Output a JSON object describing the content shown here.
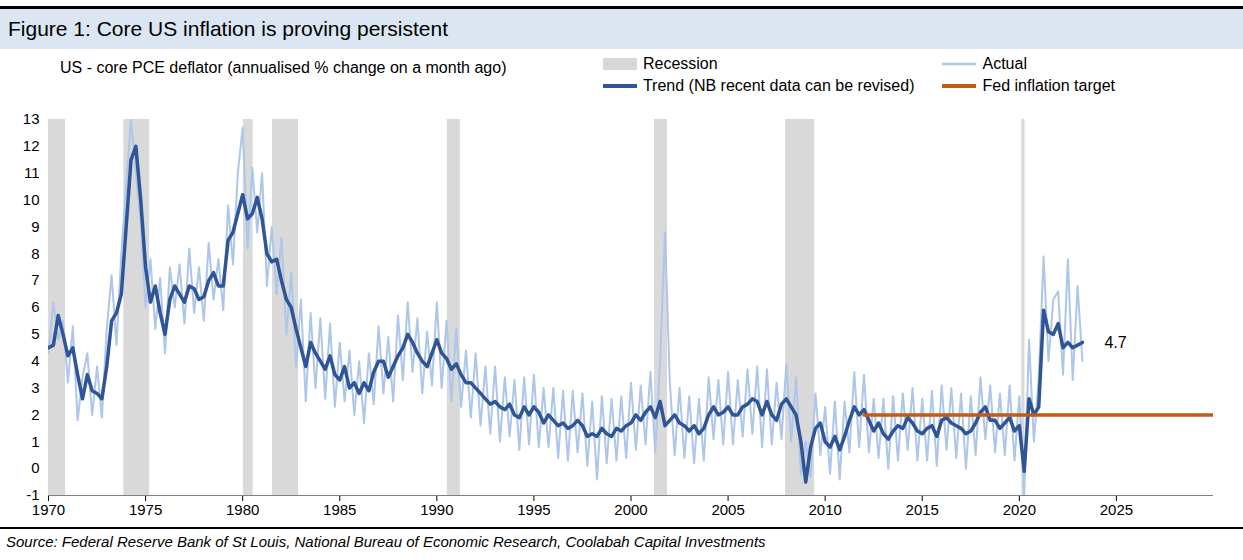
{
  "chart_data": {
    "type": "line",
    "title": "Figure 1: Core US inflation is proving persistent",
    "subtitle": "US - core PCE deflator (annualised % change on a month ago)",
    "source": "Source: Federal Reserve Bank of St Louis, National Bureau of Economic Research, Coolabah Capital Investments",
    "xlim": [
      1970,
      2030
    ],
    "xticks": [
      1970,
      1975,
      1980,
      1985,
      1990,
      1995,
      2000,
      2005,
      2010,
      2015,
      2020,
      2025
    ],
    "ylim": [
      -1,
      13
    ],
    "yticks": [
      -1,
      0,
      1,
      2,
      3,
      4,
      5,
      6,
      7,
      8,
      9,
      10,
      11,
      12,
      13
    ],
    "grid": false,
    "recessions": {
      "name": "Recession",
      "color": "#d9d9d9",
      "periods": [
        [
          1969.92,
          1970.88
        ],
        [
          1973.88,
          1975.21
        ],
        [
          1980.04,
          1980.54
        ],
        [
          1981.54,
          1982.88
        ],
        [
          1990.54,
          1991.21
        ],
        [
          2001.21,
          2001.88
        ],
        [
          2007.96,
          2009.46
        ],
        [
          2020.13,
          2020.29
        ]
      ]
    },
    "x": [
      1970,
      1970.25,
      1970.5,
      1970.75,
      1971,
      1971.25,
      1971.5,
      1971.75,
      1972,
      1972.25,
      1972.5,
      1972.75,
      1973,
      1973.25,
      1973.5,
      1973.75,
      1974,
      1974.25,
      1974.5,
      1974.75,
      1975,
      1975.25,
      1975.5,
      1975.75,
      1976,
      1976.25,
      1976.5,
      1976.75,
      1977,
      1977.25,
      1977.5,
      1977.75,
      1978,
      1978.25,
      1978.5,
      1978.75,
      1979,
      1979.25,
      1979.5,
      1979.75,
      1980,
      1980.25,
      1980.5,
      1980.75,
      1981,
      1981.25,
      1981.5,
      1981.75,
      1982,
      1982.25,
      1982.5,
      1982.75,
      1983,
      1983.25,
      1983.5,
      1983.75,
      1984,
      1984.25,
      1984.5,
      1984.75,
      1985,
      1985.25,
      1985.5,
      1985.75,
      1986,
      1986.25,
      1986.5,
      1986.75,
      1987,
      1987.25,
      1987.5,
      1987.75,
      1988,
      1988.25,
      1988.5,
      1988.75,
      1989,
      1989.25,
      1989.5,
      1989.75,
      1990,
      1990.25,
      1990.5,
      1990.75,
      1991,
      1991.25,
      1991.5,
      1991.75,
      1992,
      1992.25,
      1992.5,
      1992.75,
      1993,
      1993.25,
      1993.5,
      1993.75,
      1994,
      1994.25,
      1994.5,
      1994.75,
      1995,
      1995.25,
      1995.5,
      1995.75,
      1996,
      1996.25,
      1996.5,
      1996.75,
      1997,
      1997.25,
      1997.5,
      1997.75,
      1998,
      1998.25,
      1998.5,
      1998.75,
      1999,
      1999.25,
      1999.5,
      1999.75,
      2000,
      2000.25,
      2000.5,
      2000.75,
      2001,
      2001.25,
      2001.5,
      2001.75,
      2002,
      2002.25,
      2002.5,
      2002.75,
      2003,
      2003.25,
      2003.5,
      2003.75,
      2004,
      2004.25,
      2004.5,
      2004.75,
      2005,
      2005.25,
      2005.5,
      2005.75,
      2006,
      2006.25,
      2006.5,
      2006.75,
      2007,
      2007.25,
      2007.5,
      2007.75,
      2008,
      2008.25,
      2008.5,
      2008.75,
      2009,
      2009.25,
      2009.5,
      2009.75,
      2010,
      2010.25,
      2010.5,
      2010.75,
      2011,
      2011.25,
      2011.5,
      2011.75,
      2012,
      2012.25,
      2012.5,
      2012.75,
      2013,
      2013.25,
      2013.5,
      2013.75,
      2014,
      2014.25,
      2014.5,
      2014.75,
      2015,
      2015.25,
      2015.5,
      2015.75,
      2016,
      2016.25,
      2016.5,
      2016.75,
      2017,
      2017.25,
      2017.5,
      2017.75,
      2018,
      2018.25,
      2018.5,
      2018.75,
      2019,
      2019.25,
      2019.5,
      2019.75,
      2020,
      2020.25,
      2020.5,
      2020.75,
      2021,
      2021.25,
      2021.5,
      2021.75,
      2022,
      2022.25,
      2022.5,
      2022.75,
      2023,
      2023.25
    ],
    "series": [
      {
        "name": "Actual",
        "color": "#adc6e9",
        "values": [
          4.3,
          6.2,
          4.8,
          5.5,
          3.2,
          5.3,
          1.8,
          3.4,
          4.3,
          2.0,
          3.8,
          1.9,
          5.2,
          7.2,
          4.6,
          8.0,
          10.5,
          13.0,
          11.0,
          9.2,
          6.0,
          7.8,
          5.2,
          7.1,
          4.3,
          7.5,
          6.0,
          7.6,
          5.4,
          8.2,
          5.8,
          7.5,
          5.5,
          8.4,
          6.3,
          7.8,
          5.9,
          9.8,
          7.6,
          11.0,
          12.7,
          8.2,
          11.2,
          8.8,
          11.0,
          6.8,
          9.0,
          6.5,
          8.6,
          5.0,
          7.3,
          3.8,
          6.3,
          2.5,
          5.8,
          3.0,
          5.6,
          2.6,
          5.4,
          2.3,
          4.7,
          2.5,
          4.4,
          2.0,
          4.0,
          1.7,
          4.3,
          2.4,
          5.3,
          2.8,
          4.9,
          2.5,
          5.7,
          3.3,
          6.2,
          3.6,
          5.6,
          2.8,
          5.1,
          3.1,
          6.2,
          3.0,
          5.5,
          2.5,
          5.2,
          2.3,
          4.4,
          1.9,
          4.3,
          1.6,
          3.8,
          1.3,
          3.8,
          1.0,
          3.4,
          1.2,
          3.3,
          0.7,
          3.4,
          0.9,
          3.5,
          0.8,
          3.0,
          0.8,
          3.0,
          0.4,
          2.9,
          0.3,
          2.9,
          0.6,
          2.8,
          0.1,
          2.5,
          -0.4,
          2.7,
          0.2,
          2.6,
          0.3,
          2.7,
          0.4,
          3.2,
          0.7,
          3.1,
          0.9,
          3.6,
          0.6,
          4.0,
          8.8,
          3.2,
          0.5,
          3.0,
          0.4,
          2.7,
          0.2,
          2.6,
          0.3,
          3.4,
          1.1,
          3.3,
          0.9,
          3.6,
          0.9,
          3.3,
          1.2,
          3.7,
          1.3,
          3.8,
          0.8,
          3.7,
          0.9,
          3.2,
          1.1,
          3.9,
          1.0,
          3.4,
          -0.2,
          1.0,
          -0.3,
          2.8,
          0.5,
          2.3,
          -0.2,
          2.5,
          -0.4,
          2.5,
          0.6,
          3.6,
          0.8,
          3.5,
          0.6,
          2.6,
          0.4,
          2.6,
          0.0,
          2.7,
          0.3,
          2.8,
          0.7,
          3.0,
          0.3,
          2.6,
          0.3,
          2.9,
          0.1,
          3.1,
          0.7,
          3.0,
          0.4,
          2.8,
          0.0,
          2.7,
          0.5,
          3.4,
          1.1,
          3.1,
          0.6,
          2.8,
          0.5,
          3.1,
          0.3,
          2.7,
          -1.0,
          4.8,
          1.0,
          3.4,
          7.9,
          4.0,
          6.3,
          6.6,
          3.5,
          7.8,
          3.3,
          6.8,
          4.0
        ]
      },
      {
        "name": "Trend (NB recent data can be revised)",
        "color": "#2f5597",
        "values": [
          4.5,
          4.6,
          5.7,
          5.0,
          4.2,
          4.5,
          3.5,
          2.6,
          3.5,
          2.9,
          2.8,
          2.6,
          3.8,
          5.5,
          5.8,
          6.5,
          9.0,
          11.5,
          12.0,
          10.0,
          7.5,
          6.2,
          6.8,
          5.8,
          5.0,
          6.3,
          6.8,
          6.5,
          6.2,
          6.8,
          6.7,
          6.3,
          6.4,
          7.0,
          7.3,
          6.8,
          6.8,
          8.5,
          8.8,
          9.5,
          10.2,
          9.3,
          9.5,
          10.1,
          9.3,
          8.0,
          7.7,
          7.8,
          7.0,
          6.3,
          6.0,
          5.2,
          4.5,
          3.8,
          4.7,
          4.3,
          4.0,
          3.7,
          4.2,
          3.5,
          3.3,
          3.8,
          3.0,
          3.2,
          2.8,
          3.2,
          2.9,
          3.6,
          4.0,
          4.0,
          3.4,
          3.8,
          4.2,
          4.5,
          5.0,
          4.7,
          4.3,
          4.0,
          3.8,
          4.3,
          4.8,
          4.3,
          4.1,
          3.7,
          3.9,
          3.5,
          3.2,
          3.2,
          3.0,
          2.8,
          2.6,
          2.4,
          2.5,
          2.3,
          2.2,
          2.4,
          2.0,
          1.9,
          2.3,
          2.0,
          2.3,
          2.1,
          1.7,
          2.0,
          1.8,
          1.6,
          1.7,
          1.5,
          1.6,
          1.8,
          1.6,
          1.2,
          1.3,
          1.2,
          1.5,
          1.3,
          1.2,
          1.5,
          1.4,
          1.6,
          1.7,
          2.0,
          1.8,
          2.1,
          2.3,
          1.9,
          2.5,
          1.6,
          1.8,
          2.0,
          1.7,
          1.6,
          1.4,
          1.6,
          1.3,
          1.5,
          2.0,
          2.3,
          2.0,
          2.1,
          2.3,
          2.0,
          2.0,
          2.3,
          2.4,
          2.6,
          2.5,
          2.0,
          2.5,
          2.0,
          1.8,
          2.4,
          2.6,
          2.3,
          2.0,
          1.0,
          -0.5,
          0.8,
          1.5,
          1.7,
          1.0,
          0.8,
          1.2,
          0.7,
          1.2,
          1.8,
          2.3,
          2.0,
          2.2,
          1.8,
          1.4,
          1.7,
          1.3,
          1.1,
          1.4,
          1.6,
          1.5,
          1.9,
          1.7,
          1.4,
          1.3,
          1.5,
          1.6,
          1.2,
          1.8,
          1.9,
          1.7,
          1.6,
          1.5,
          1.3,
          1.4,
          1.7,
          2.1,
          2.3,
          1.8,
          1.8,
          1.5,
          1.7,
          1.9,
          1.4,
          1.6,
          -0.1,
          2.6,
          2.0,
          2.3,
          5.9,
          5.1,
          5.0,
          5.4,
          4.5,
          4.7,
          4.5,
          4.6,
          4.7
        ]
      },
      {
        "name": "Fed inflation target",
        "color": "#c55a11",
        "x": [
          2012,
          2030
        ],
        "values": [
          2,
          2
        ]
      }
    ],
    "annotations": [
      {
        "text": "4.7",
        "value": 4.7
      }
    ]
  }
}
